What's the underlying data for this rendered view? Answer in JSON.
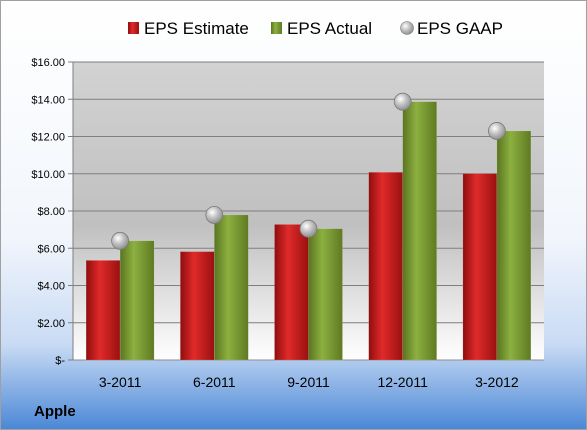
{
  "company": "Apple",
  "chart_data": {
    "type": "bar",
    "categories": [
      "3-2011",
      "6-2011",
      "9-2011",
      "12-2011",
      "3-2012"
    ],
    "series": [
      {
        "name": "EPS Estimate",
        "kind": "bar",
        "color": "#c81e1e",
        "values": [
          5.35,
          5.82,
          7.28,
          10.08,
          10.01
        ]
      },
      {
        "name": "EPS Actual",
        "kind": "bar",
        "color": "#7a9a30",
        "values": [
          6.4,
          7.79,
          7.05,
          13.87,
          12.3
        ]
      },
      {
        "name": "EPS GAAP",
        "kind": "marker",
        "color": "#a8a8a8",
        "values": [
          6.4,
          7.79,
          7.05,
          13.87,
          12.3
        ]
      }
    ],
    "yticks": [
      "$-",
      "$2.00",
      "$4.00",
      "$6.00",
      "$8.00",
      "$10.00",
      "$12.00",
      "$14.00",
      "$16.00"
    ],
    "ylim": [
      0,
      16
    ],
    "grid": true,
    "legend_position": "top"
  }
}
